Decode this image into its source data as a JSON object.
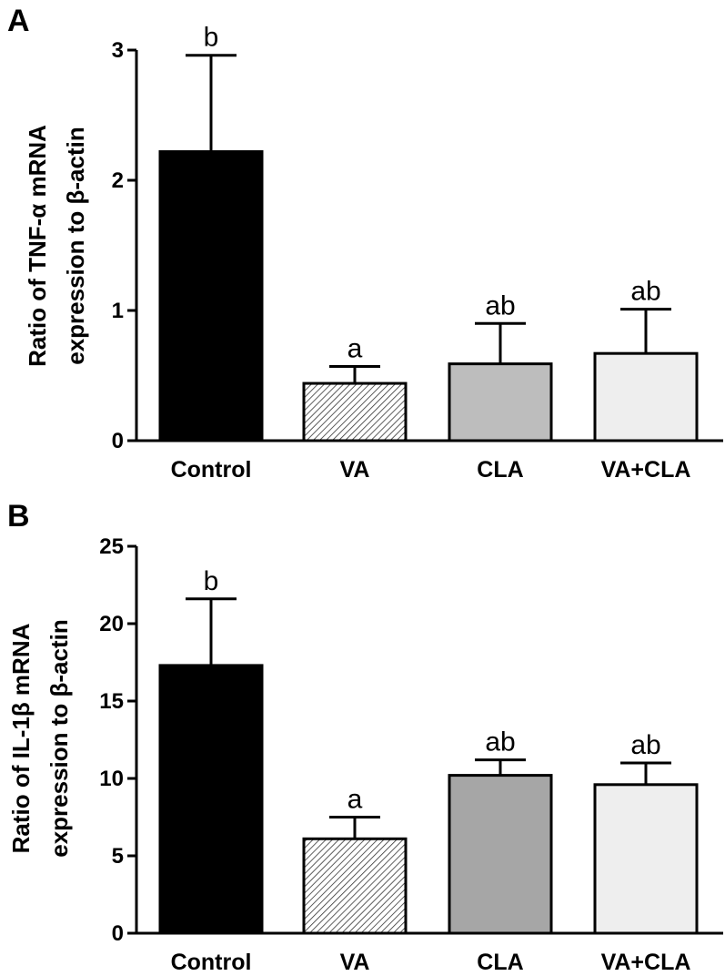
{
  "chart_data": [
    {
      "panel": "A",
      "type": "bar",
      "ylabel_lines": [
        "Ratio of TNF-α mRNA",
        "expression to β-actin"
      ],
      "categories": [
        "Control",
        "VA",
        "CLA",
        "VA+CLA"
      ],
      "values": [
        2.22,
        0.44,
        0.59,
        0.67
      ],
      "errors": [
        0.74,
        0.13,
        0.31,
        0.34
      ],
      "significance": [
        "b",
        "a",
        "ab",
        "ab"
      ],
      "ylim": [
        0,
        3
      ],
      "yticks": [
        "0",
        "1",
        "2",
        "3"
      ],
      "bar_fills": [
        "#000000",
        "hatch",
        "#bdbdbd",
        "#eeeeee"
      ]
    },
    {
      "panel": "B",
      "type": "bar",
      "ylabel_lines": [
        "Ratio of IL-1β mRNA",
        "expression to β-actin"
      ],
      "categories": [
        "Control",
        "VA",
        "CLA",
        "VA+CLA"
      ],
      "values": [
        17.3,
        6.1,
        10.2,
        9.6
      ],
      "errors": [
        4.3,
        1.4,
        1.0,
        1.4
      ],
      "significance": [
        "b",
        "a",
        "ab",
        "ab"
      ],
      "ylim": [
        0,
        25
      ],
      "yticks": [
        "0",
        "5",
        "10",
        "15",
        "20",
        "25"
      ],
      "bar_fills": [
        "#000000",
        "hatch",
        "#a6a6a6",
        "#eeeeee"
      ]
    }
  ]
}
